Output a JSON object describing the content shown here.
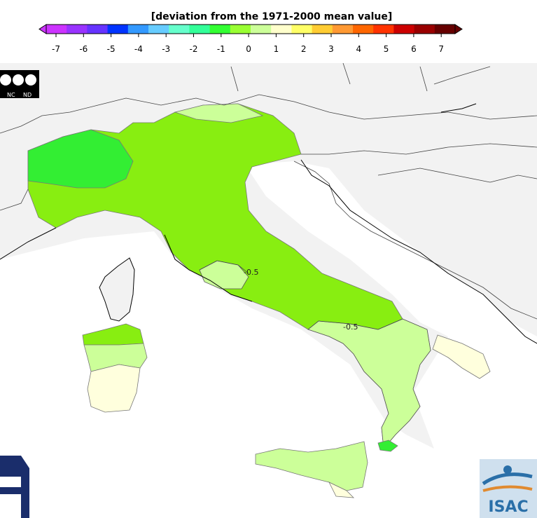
{
  "legend": {
    "title": "[deviation from the 1971-2000 mean value]",
    "ticks": [
      "-7",
      "-6",
      "-5",
      "-4",
      "-3",
      "-2",
      "-1",
      "0",
      "1",
      "2",
      "3",
      "4",
      "5",
      "6",
      "7"
    ],
    "colors": [
      "#cc33ff",
      "#9933ff",
      "#6633ff",
      "#0033ff",
      "#3399ff",
      "#66ccff",
      "#66ffcc",
      "#33ff99",
      "#33ff33",
      "#99ff33",
      "#ccff99",
      "#ffffcc",
      "#ffff66",
      "#ffcc33",
      "#ff9933",
      "#ff6600",
      "#ff3300",
      "#cc0000",
      "#990000",
      "#660000"
    ]
  },
  "contours": {
    "label_a": "-0.5",
    "label_b": "-0.5"
  },
  "license": {
    "nc": "NC",
    "nd": "ND"
  },
  "logo": {
    "text": "ISAC"
  },
  "colors": {
    "land": "#f2f2f2",
    "sea": "#ffffff",
    "dev_minus1": "#33ee33",
    "dev_minus05": "#88ee11",
    "dev_0": "#ccff99",
    "dev_plus": "#ffffdd"
  }
}
